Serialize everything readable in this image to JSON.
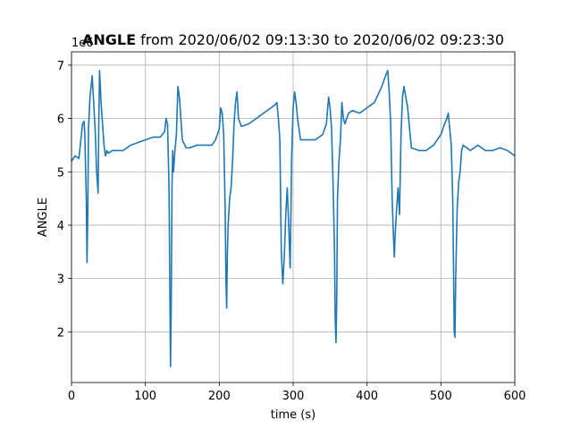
{
  "chart_data": {
    "type": "line",
    "title_bold": "ANGLE",
    "title_rest": " from 2020/06/02 09:13:30 to 2020/06/02 09:23:30",
    "xlabel": "time (s)",
    "ylabel": "ANGLE",
    "offset_label": "1e6",
    "xlim": [
      0,
      600
    ],
    "ylim": [
      1.05,
      7.25
    ],
    "xticks": [
      0,
      100,
      200,
      300,
      400,
      500,
      600
    ],
    "yticks": [
      2,
      3,
      4,
      5,
      6,
      7
    ],
    "grid": true,
    "line_color": "#1f77b4",
    "series": [
      {
        "x": [
          0,
          5,
          10,
          15,
          17,
          18,
          20,
          21,
          22,
          23,
          25,
          28,
          30,
          32,
          34,
          36,
          37,
          38,
          40,
          42,
          44,
          46,
          48,
          50,
          55,
          60,
          70,
          80,
          90,
          100,
          110,
          120,
          126,
          128,
          130,
          132,
          133,
          134,
          135,
          136,
          137,
          138,
          140,
          142,
          144,
          146,
          148,
          150,
          155,
          160,
          170,
          180,
          190,
          195,
          200,
          202,
          204,
          206,
          208,
          209,
          210,
          211,
          212,
          214,
          216,
          218,
          220,
          222,
          224,
          226,
          230,
          240,
          250,
          260,
          270,
          275,
          278,
          280,
          282,
          284,
          286,
          288,
          290,
          292,
          294,
          296,
          298,
          300,
          302,
          304,
          306,
          310,
          320,
          330,
          340,
          345,
          348,
          350,
          352,
          354,
          356,
          357,
          358,
          359,
          360,
          362,
          364,
          366,
          368,
          370,
          375,
          380,
          390,
          400,
          410,
          420,
          425,
          428,
          430,
          432,
          434,
          436,
          437,
          438,
          440,
          442,
          444,
          446,
          448,
          450,
          455,
          460,
          470,
          480,
          490,
          495,
          500,
          505,
          508,
          510,
          512,
          514,
          516,
          517,
          518,
          519,
          520,
          522,
          524,
          526,
          528,
          530,
          535,
          540,
          550,
          560,
          570,
          580,
          590,
          600
        ],
        "y": [
          5.2,
          5.3,
          5.25,
          5.9,
          5.95,
          5.7,
          4.5,
          3.3,
          4.2,
          5.8,
          6.4,
          6.8,
          6.3,
          5.8,
          5.0,
          4.6,
          6.0,
          6.9,
          6.3,
          5.9,
          5.5,
          5.3,
          5.4,
          5.35,
          5.4,
          5.4,
          5.4,
          5.5,
          5.55,
          5.6,
          5.65,
          5.65,
          5.75,
          6.0,
          5.9,
          4.7,
          3.0,
          1.35,
          2.5,
          4.7,
          5.4,
          5.0,
          5.4,
          5.7,
          6.6,
          6.4,
          6.0,
          5.6,
          5.45,
          5.45,
          5.5,
          5.5,
          5.5,
          5.6,
          5.8,
          6.2,
          6.1,
          5.7,
          4.3,
          3.0,
          2.45,
          3.5,
          4.0,
          4.5,
          4.7,
          5.2,
          5.9,
          6.3,
          6.5,
          6.0,
          5.85,
          5.9,
          6.0,
          6.1,
          6.2,
          6.25,
          6.3,
          6.0,
          5.6,
          3.5,
          2.9,
          3.4,
          4.2,
          4.7,
          4.0,
          3.2,
          5.3,
          6.2,
          6.5,
          6.3,
          6.0,
          5.6,
          5.6,
          5.6,
          5.7,
          5.9,
          6.4,
          6.2,
          5.8,
          4.8,
          3.5,
          2.2,
          1.8,
          2.6,
          4.5,
          5.2,
          5.6,
          6.3,
          6.0,
          5.9,
          6.1,
          6.15,
          6.1,
          6.2,
          6.3,
          6.6,
          6.8,
          6.9,
          6.5,
          5.9,
          4.5,
          3.7,
          3.4,
          3.8,
          4.3,
          4.7,
          4.2,
          5.7,
          6.4,
          6.6,
          6.2,
          5.45,
          5.4,
          5.4,
          5.5,
          5.6,
          5.7,
          5.9,
          6.0,
          6.1,
          5.8,
          5.5,
          4.5,
          3.3,
          2.0,
          1.9,
          3.0,
          4.3,
          4.8,
          5.0,
          5.4,
          5.5,
          5.45,
          5.4,
          5.5,
          5.4,
          5.4,
          5.45,
          5.4,
          5.3
        ]
      }
    ]
  }
}
